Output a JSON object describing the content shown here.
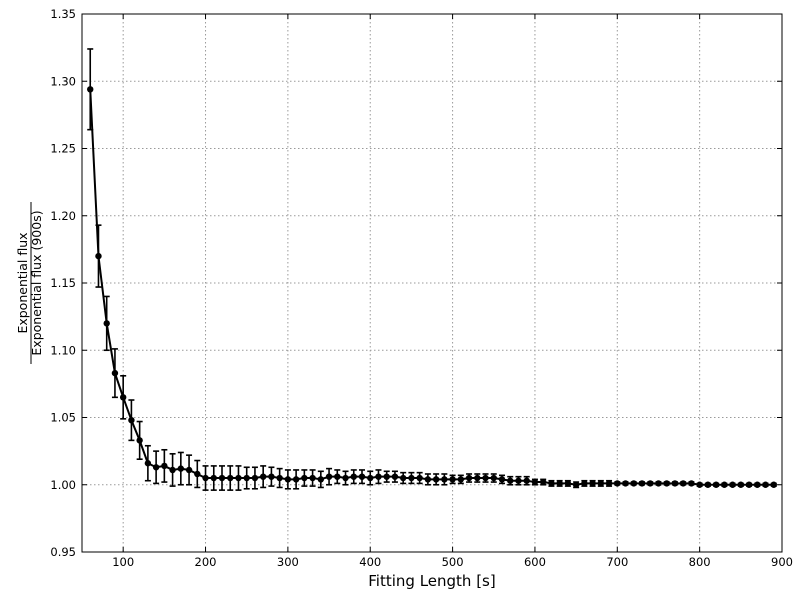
{
  "chart_data": {
    "type": "line",
    "xlabel": "Fitting Length [s]",
    "ylabel_numerator": "Exponential flux",
    "ylabel_denominator": "Exponential flux (900s)",
    "xlim": [
      50,
      900
    ],
    "ylim": [
      0.95,
      1.35
    ],
    "x_ticks": [
      "100",
      "200",
      "300",
      "400",
      "500",
      "600",
      "700",
      "800",
      "900"
    ],
    "y_ticks": [
      "0.95",
      "1.00",
      "1.05",
      "1.10",
      "1.15",
      "1.20",
      "1.25",
      "1.30",
      "1.35"
    ],
    "grid": true,
    "series": [
      {
        "color": "#000000",
        "marker": "circle",
        "x": [
          60,
          70,
          80,
          90,
          100,
          110,
          120,
          130,
          140,
          150,
          160,
          170,
          180,
          190,
          200,
          210,
          220,
          230,
          240,
          250,
          260,
          270,
          280,
          290,
          300,
          310,
          320,
          330,
          340,
          350,
          360,
          370,
          380,
          390,
          400,
          410,
          420,
          430,
          440,
          450,
          460,
          470,
          480,
          490,
          500,
          510,
          520,
          530,
          540,
          550,
          560,
          570,
          580,
          590,
          600,
          610,
          620,
          630,
          640,
          650,
          660,
          670,
          680,
          690,
          700,
          710,
          720,
          730,
          740,
          750,
          760,
          770,
          780,
          790,
          800,
          810,
          820,
          830,
          840,
          850,
          860,
          870,
          880,
          890
        ],
        "y": [
          1.294,
          1.17,
          1.12,
          1.083,
          1.065,
          1.048,
          1.033,
          1.016,
          1.013,
          1.014,
          1.011,
          1.012,
          1.011,
          1.008,
          1.005,
          1.005,
          1.005,
          1.005,
          1.005,
          1.005,
          1.005,
          1.006,
          1.006,
          1.005,
          1.004,
          1.004,
          1.005,
          1.005,
          1.004,
          1.006,
          1.006,
          1.005,
          1.006,
          1.006,
          1.005,
          1.006,
          1.006,
          1.006,
          1.005,
          1.005,
          1.005,
          1.004,
          1.004,
          1.004,
          1.004,
          1.004,
          1.005,
          1.005,
          1.005,
          1.005,
          1.004,
          1.003,
          1.003,
          1.003,
          1.002,
          1.002,
          1.001,
          1.001,
          1.001,
          1.0,
          1.001,
          1.001,
          1.001,
          1.001,
          1.001,
          1.001,
          1.001,
          1.001,
          1.001,
          1.001,
          1.001,
          1.001,
          1.001,
          1.001,
          1.0,
          1.0,
          1.0,
          1.0,
          1.0,
          1.0,
          1.0,
          1.0,
          1.0,
          1.0
        ],
        "yerr": [
          0.03,
          0.023,
          0.02,
          0.018,
          0.016,
          0.015,
          0.014,
          0.013,
          0.012,
          0.012,
          0.012,
          0.012,
          0.011,
          0.01,
          0.009,
          0.009,
          0.009,
          0.009,
          0.009,
          0.008,
          0.008,
          0.008,
          0.007,
          0.007,
          0.007,
          0.007,
          0.006,
          0.006,
          0.006,
          0.006,
          0.005,
          0.005,
          0.005,
          0.005,
          0.005,
          0.005,
          0.004,
          0.004,
          0.004,
          0.004,
          0.004,
          0.004,
          0.004,
          0.004,
          0.003,
          0.003,
          0.003,
          0.003,
          0.003,
          0.003,
          0.003,
          0.003,
          0.003,
          0.003,
          0.002,
          0.002,
          0.002,
          0.002,
          0.002,
          0.002,
          0.002,
          0.002,
          0.002,
          0.002,
          0.001,
          0.001,
          0.001,
          0.001,
          0.001,
          0.001,
          0.001,
          0.001,
          0.001,
          0.001,
          0.001,
          0.001,
          0.001,
          0.001,
          0.001,
          0.001,
          0.001,
          0.001,
          0.001,
          0.001
        ]
      }
    ]
  }
}
